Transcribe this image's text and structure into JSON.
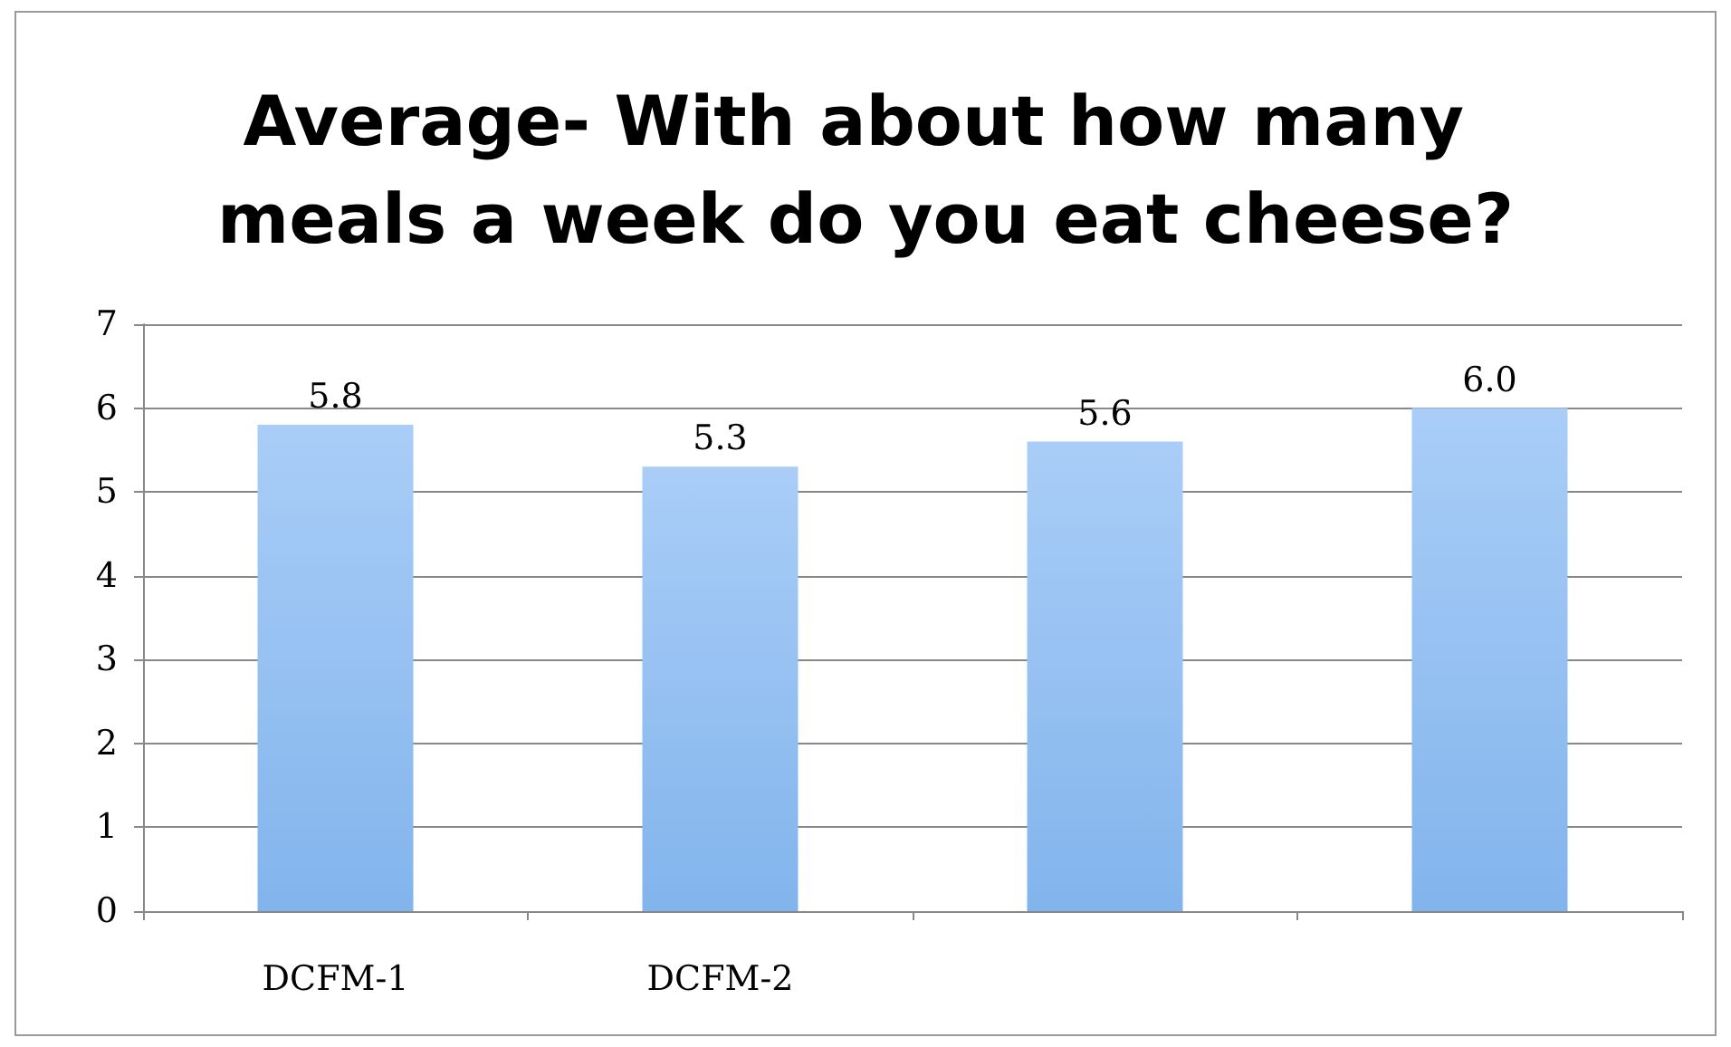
{
  "chart_data": {
    "type": "bar",
    "title": "Average- With about how many meals a week do you eat cheese?",
    "categories": [
      "DCFM-1",
      "DCFM-2",
      null,
      null
    ],
    "values": [
      5.8,
      5.3,
      5.6,
      6.0
    ],
    "value_labels": [
      "5.8",
      "5.3",
      "5.6",
      "6.0"
    ],
    "color": "#82b4ec",
    "ylim": [
      0,
      7
    ],
    "yticks": [
      0,
      1,
      2,
      3,
      4,
      5,
      6,
      7
    ],
    "grid": "y"
  }
}
